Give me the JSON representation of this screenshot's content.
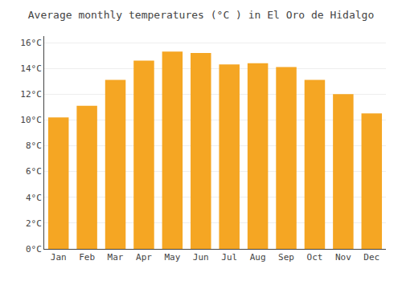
{
  "chart_data": {
    "type": "bar",
    "title": "Average monthly temperatures (°C ) in El Oro de Hidalgo",
    "categories": [
      "Jan",
      "Feb",
      "Mar",
      "Apr",
      "May",
      "Jun",
      "Jul",
      "Aug",
      "Sep",
      "Oct",
      "Nov",
      "Dec"
    ],
    "values": [
      10.2,
      11.1,
      13.1,
      14.6,
      15.3,
      15.2,
      14.3,
      14.4,
      14.1,
      13.1,
      12.0,
      10.5
    ],
    "color": "#F5A623",
    "ylim": [
      0,
      16.5
    ],
    "yticks": [
      {
        "value": 0,
        "label": "0°C"
      },
      {
        "value": 2,
        "label": "2°C"
      },
      {
        "value": 4,
        "label": "4°C"
      },
      {
        "value": 6,
        "label": "6°C"
      },
      {
        "value": 8,
        "label": "8°C"
      },
      {
        "value": 10,
        "label": "10°C"
      },
      {
        "value": 12,
        "label": "12°C"
      },
      {
        "value": 14,
        "label": "14°C"
      },
      {
        "value": 16,
        "label": "16°C"
      }
    ],
    "grid": true
  }
}
